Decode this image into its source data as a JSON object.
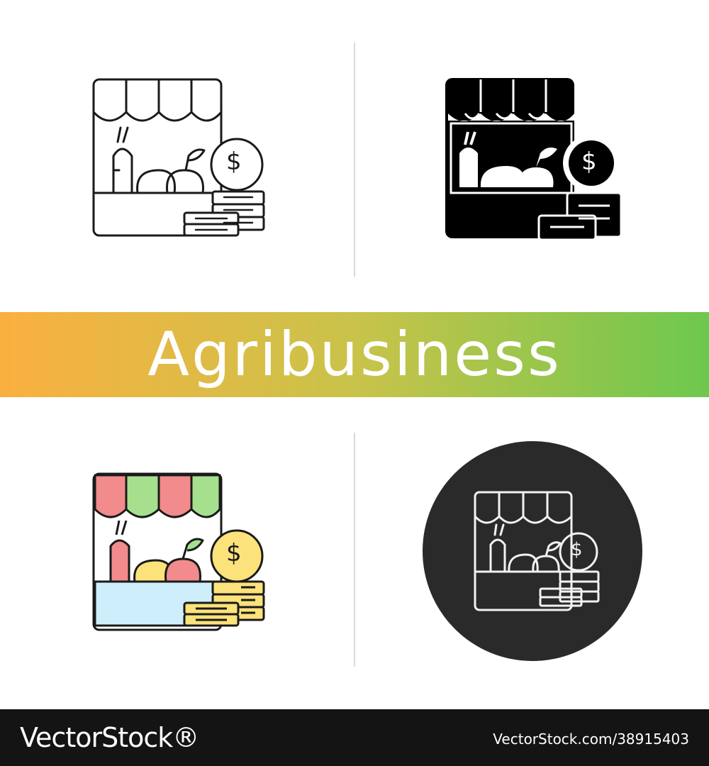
{
  "banner": {
    "title": "Agribusiness"
  },
  "icons": [
    {
      "name": "linear-icon",
      "style": "outline"
    },
    {
      "name": "glyph-icon",
      "style": "filled"
    },
    {
      "name": "color-icon",
      "style": "rgb"
    },
    {
      "name": "chalk-icon",
      "style": "chalk"
    }
  ],
  "coin_symbol": "$",
  "colors": {
    "banner_start": "#fbb040",
    "banner_end": "#6dc84e",
    "awning_red": "#f28b8b",
    "awning_green": "#a6e08f",
    "coin_yellow": "#fbe27a",
    "counter_blue": "#cdeefa",
    "chalk_bg": "#2a2a2a",
    "footer_bg": "#141414"
  },
  "footer": {
    "logo": "VectorStock®",
    "image_id": "VectorStock.com/38915403"
  }
}
